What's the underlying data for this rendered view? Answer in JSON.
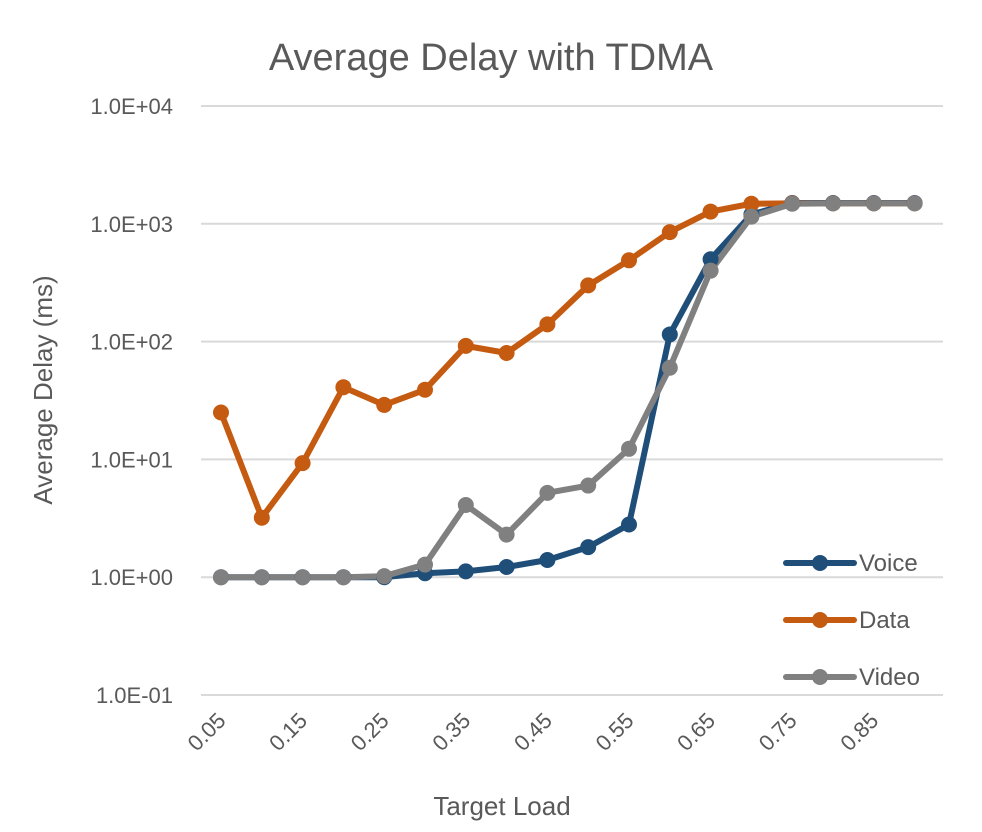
{
  "chart_data": {
    "type": "line",
    "title": "Average Delay with TDMA",
    "xlabel": "Target Load",
    "ylabel": "Average Delay (ms)",
    "y_scale": "log",
    "ylim": [
      0.1,
      10000
    ],
    "grid": true,
    "legend_position": "right",
    "x": [
      0.05,
      0.1,
      0.15,
      0.2,
      0.25,
      0.3,
      0.35,
      0.4,
      0.45,
      0.5,
      0.55,
      0.6,
      0.65,
      0.7,
      0.75,
      0.8,
      0.85,
      0.9
    ],
    "x_tick_labels": [
      "0.05",
      "0.15",
      "0.25",
      "0.35",
      "0.45",
      "0.55",
      "0.65",
      "0.75",
      "0.85"
    ],
    "y_ticks": [
      0.1,
      1,
      10,
      100,
      1000,
      10000
    ],
    "y_tick_labels": [
      "1.0E-01",
      "1.0E+00",
      "1.0E+01",
      "1.0E+02",
      "1.0E+03",
      "1.0E+04"
    ],
    "series": [
      {
        "name": "Voice",
        "color": "#1f4e79",
        "values": [
          1.0,
          1.0,
          1.0,
          1.0,
          1.0,
          1.08,
          1.12,
          1.22,
          1.4,
          1.8,
          2.8,
          115,
          500,
          1200,
          1500,
          1500,
          1500,
          1500
        ]
      },
      {
        "name": "Data",
        "color": "#c55a11",
        "values": [
          25,
          3.2,
          9.3,
          41,
          29,
          39,
          92,
          80,
          140,
          300,
          490,
          850,
          1270,
          1480,
          1490,
          1490,
          1490,
          1490
        ]
      },
      {
        "name": "Video",
        "color": "#808080",
        "values": [
          1.0,
          1.0,
          1.0,
          1.0,
          1.02,
          1.28,
          4.1,
          2.3,
          5.2,
          6.0,
          12.3,
          60,
          400,
          1150,
          1480,
          1490,
          1490,
          1490
        ]
      }
    ]
  }
}
